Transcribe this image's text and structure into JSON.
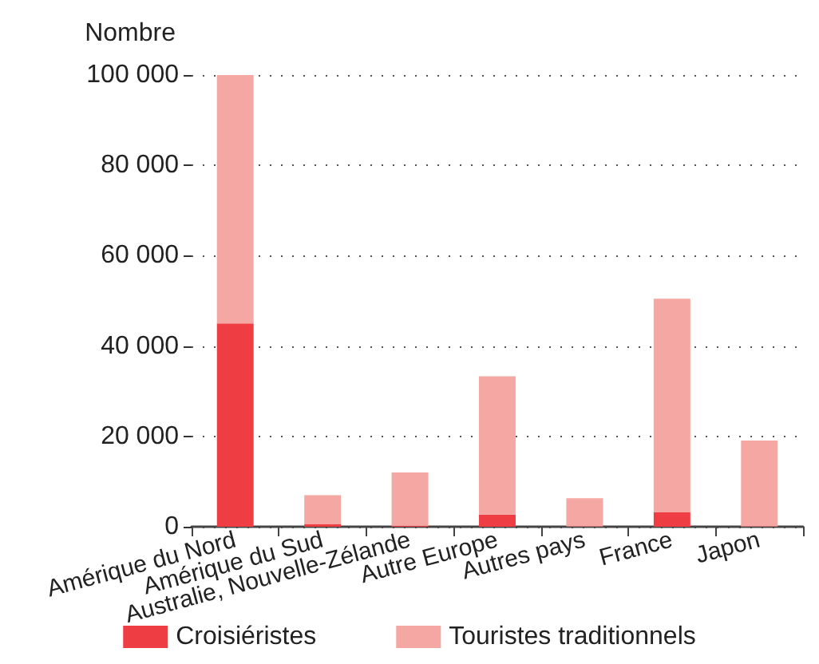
{
  "chart_data": {
    "type": "bar",
    "ylabel": "Nombre",
    "categories": [
      "Amérique du Nord",
      "Amérique du Sud",
      "Australie, Nouvelle-Zélande",
      "Autre Europe",
      "Autres pays",
      "France",
      "Japon"
    ],
    "series": [
      {
        "name": "Croisiéristes",
        "color": "#ee3e44",
        "values": [
          45000,
          600,
          200,
          2700,
          100,
          3200,
          100
        ]
      },
      {
        "name": "Touristes traditionnels",
        "color": "#f5a8a3",
        "values": [
          55000,
          6400,
          11800,
          30600,
          6200,
          47300,
          19000
        ]
      }
    ],
    "stacked": true,
    "ylim": [
      0,
      100000
    ],
    "yticks": [
      {
        "value": 0,
        "label": "0"
      },
      {
        "value": 20000,
        "label": "20 000"
      },
      {
        "value": 40000,
        "label": "40 000"
      },
      {
        "value": 60000,
        "label": "60 000"
      },
      {
        "value": 80000,
        "label": "80 000"
      },
      {
        "value": 100000,
        "label": "100 000"
      }
    ],
    "grid": "y",
    "legend": "bottom"
  }
}
